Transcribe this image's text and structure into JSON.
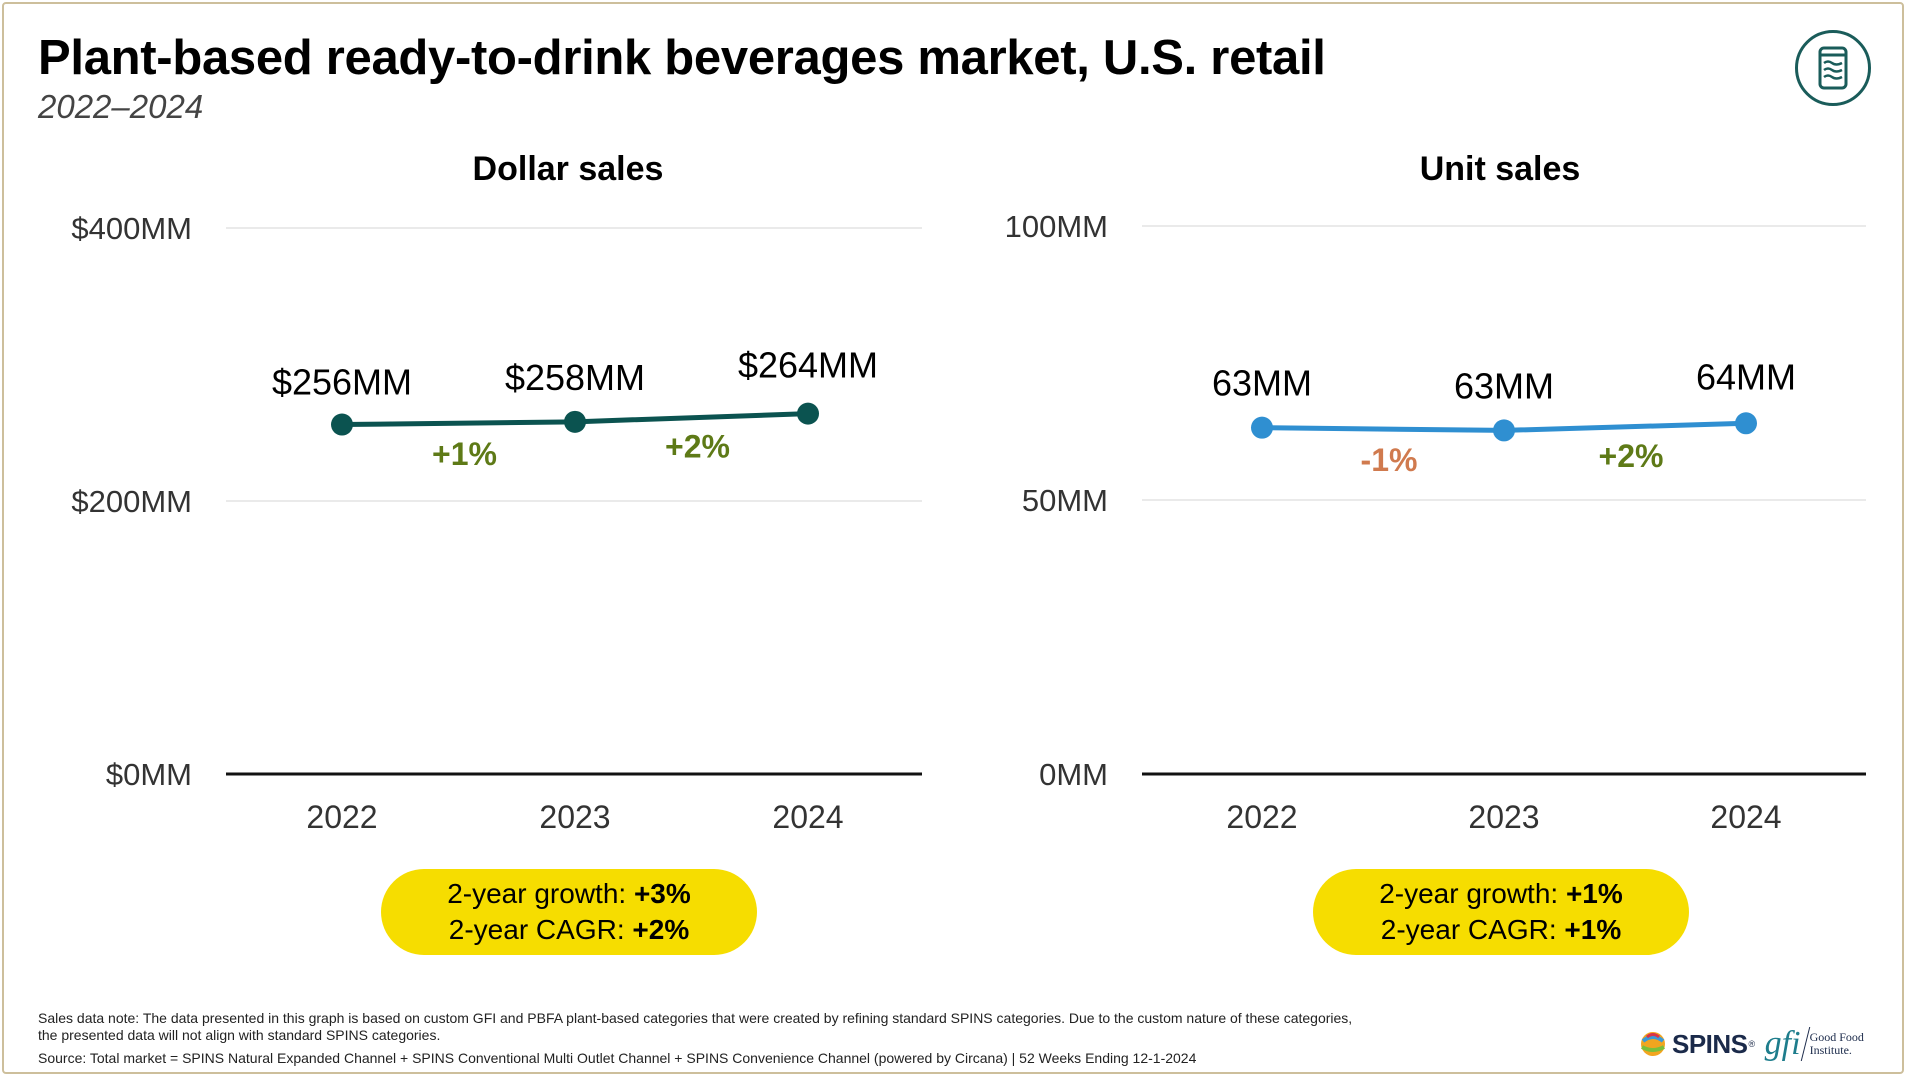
{
  "header": {
    "title": "Plant-based ready-to-drink beverages market, U.S. retail",
    "subtitle": "2022–2024",
    "badge_icon": "beverage-can-icon"
  },
  "colors": {
    "dollar_line": "#0b5350",
    "unit_line": "#2f8fd1",
    "positive": "#5e7a17",
    "negative": "#d07a4e",
    "pill": "#f6dd00",
    "axis": "#111111",
    "grid": "#e3e3e3"
  },
  "chart_data": [
    {
      "type": "line",
      "title": "Dollar sales",
      "categories": [
        "2022",
        "2023",
        "2024"
      ],
      "values": [
        256,
        258,
        264
      ],
      "value_labels": [
        "$256MM",
        "$258MM",
        "$264MM"
      ],
      "change_labels": [
        "+1%",
        "+2%"
      ],
      "change_signs": [
        "positive",
        "positive"
      ],
      "ylim": [
        0,
        400
      ],
      "yticks": [
        0,
        200,
        400
      ],
      "ytick_labels": [
        "$0MM",
        "$200MM",
        "$400MM"
      ],
      "grid": true,
      "summary": {
        "growth_label": "2-year growth:",
        "growth_value": "+3%",
        "cagr_label": "2-year CAGR:",
        "cagr_value": "+2%"
      }
    },
    {
      "type": "line",
      "title": "Unit sales",
      "categories": [
        "2022",
        "2023",
        "2024"
      ],
      "values": [
        63.2,
        62.7,
        64.0
      ],
      "value_labels": [
        "63MM",
        "63MM",
        "64MM"
      ],
      "change_labels": [
        "-1%",
        "+2%"
      ],
      "change_signs": [
        "negative",
        "positive"
      ],
      "ylim": [
        0,
        100
      ],
      "yticks": [
        0,
        50,
        100
      ],
      "ytick_labels": [
        "0MM",
        "50MM",
        "100MM"
      ],
      "grid": true,
      "summary": {
        "growth_label": "2-year growth:",
        "growth_value": "+1%",
        "cagr_label": "2-year CAGR:",
        "cagr_value": "+1%"
      }
    }
  ],
  "footer": {
    "note_line1": "Sales data note: The data presented in this graph is based on custom GFI and PBFA plant-based categories that were created by refining standard SPINS categories. Due to the custom nature of these categories,",
    "note_line2": "the presented data will not align with standard SPINS categories.",
    "source": "Source: Total market = SPINS Natural Expanded Channel + SPINS Conventional Multi Outlet Channel + SPINS Convenience Channel (powered by Circana) | 52 Weeks Ending 12-1-2024",
    "spins_logo_text": "SPINS",
    "spins_logo_mark": "®",
    "gfi_logo_mark": "gfi",
    "gfi_logo_line1": "Good Food",
    "gfi_logo_line2": "Institute."
  }
}
